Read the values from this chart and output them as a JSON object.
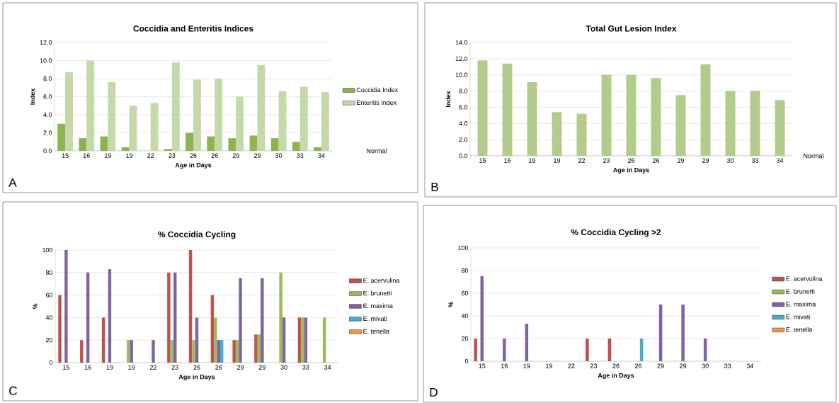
{
  "chart_data": [
    {
      "type": "bar",
      "title": "Coccidia and Enteritis Indices",
      "xlabel": "Age in Days",
      "ylabel": "Index",
      "categories": [
        "15",
        "16",
        "19",
        "19",
        "22",
        "23",
        "26",
        "26",
        "29",
        "29",
        "30",
        "33",
        "34"
      ],
      "series": [
        {
          "name": "Coccidia Index",
          "color": "#8db451",
          "values": [
            3.0,
            1.4,
            1.6,
            0.4,
            null,
            0.2,
            2.0,
            1.6,
            1.4,
            1.7,
            1.4,
            1.0,
            0.4
          ]
        },
        {
          "name": "Enteritis Index",
          "color": "#c5d8a8",
          "values": [
            8.7,
            10.0,
            7.6,
            5.0,
            5.3,
            9.8,
            7.9,
            8.0,
            6.0,
            9.5,
            6.6,
            7.1,
            6.5
          ]
        }
      ],
      "ylim": [
        0,
        12
      ],
      "yticks": [
        {
          "value": 0,
          "label": "0.0"
        },
        {
          "value": 2,
          "label": "2.0"
        },
        {
          "value": 4,
          "label": "4.0"
        },
        {
          "value": 6,
          "label": "6.0"
        },
        {
          "value": 8,
          "label": "8.0"
        },
        {
          "value": 10,
          "label": "10.0"
        },
        {
          "value": 12,
          "label": "12.0"
        }
      ],
      "grid": "y",
      "legend": "right",
      "annotations": [
        "A",
        "Normal"
      ]
    },
    {
      "type": "bar",
      "title": "Total Gut Lesion Index",
      "xlabel": "Age in Days",
      "ylabel": "Index",
      "categories": [
        "15",
        "16",
        "19",
        "19",
        "22",
        "23",
        "26",
        "26",
        "29",
        "29",
        "30",
        "33",
        "34"
      ],
      "series": [
        {
          "color": "#b3cc8c",
          "values": [
            11.8,
            11.4,
            9.1,
            5.4,
            5.2,
            10.0,
            10.0,
            9.6,
            7.5,
            11.3,
            8.0,
            8.0,
            6.9
          ]
        }
      ],
      "ylim": [
        0,
        14
      ],
      "yticks": [
        {
          "value": 0,
          "label": "0.0"
        },
        {
          "value": 2,
          "label": "2.0"
        },
        {
          "value": 4,
          "label": "4.0"
        },
        {
          "value": 6,
          "label": "6.0"
        },
        {
          "value": 8,
          "label": "8.0"
        },
        {
          "value": 10,
          "label": "10.0"
        },
        {
          "value": 12,
          "label": "12.0"
        },
        {
          "value": 14,
          "label": "14.0"
        }
      ],
      "grid": "y",
      "annotations": [
        "B",
        "Normal"
      ]
    },
    {
      "type": "bar",
      "title": "% Coccidia Cycling",
      "xlabel": "Age in Days",
      "ylabel": "%",
      "categories": [
        "15",
        "16",
        "19",
        "19",
        "22",
        "23",
        "26",
        "26",
        "29",
        "29",
        "30",
        "33",
        "34"
      ],
      "series": [
        {
          "name": "E. acervulina",
          "color": "#c0504d",
          "values": [
            60,
            20,
            40,
            null,
            null,
            80,
            100,
            60,
            20,
            25,
            null,
            40,
            null
          ]
        },
        {
          "name": "E. brunetti",
          "color": "#9bbb59",
          "values": [
            null,
            null,
            null,
            20,
            null,
            20,
            20,
            40,
            20,
            25,
            80,
            40,
            40
          ]
        },
        {
          "name": "E. maxima",
          "color": "#8064a2",
          "values": [
            100,
            80,
            83,
            20,
            20,
            80,
            40,
            20,
            75,
            75,
            40,
            40,
            null
          ]
        },
        {
          "name": "E. mivati",
          "color": "#4bacc6",
          "values": [
            null,
            null,
            null,
            null,
            null,
            null,
            null,
            20,
            null,
            null,
            null,
            null,
            null
          ]
        },
        {
          "name": "E. tenella",
          "color": "#f79646",
          "values": [
            null,
            null,
            null,
            null,
            null,
            null,
            null,
            null,
            null,
            null,
            null,
            null,
            null
          ]
        }
      ],
      "ylim": [
        0,
        100
      ],
      "yticks": [
        0,
        20,
        40,
        60,
        80,
        100
      ],
      "grid": "y",
      "legend": "right",
      "annotations": [
        "C"
      ]
    },
    {
      "type": "bar",
      "title": "% Coccidia Cycling >2",
      "xlabel": "Age in Days",
      "ylabel": "%",
      "categories": [
        "15",
        "16",
        "19",
        "19",
        "22",
        "23",
        "26",
        "26",
        "29",
        "29",
        "30",
        "33",
        "34"
      ],
      "series": [
        {
          "name": "E. acervulina",
          "color": "#c0504d",
          "values": [
            20,
            null,
            null,
            null,
            null,
            20,
            20,
            null,
            null,
            null,
            null,
            null,
            null
          ]
        },
        {
          "name": "E. brunetti",
          "color": "#9bbb59",
          "values": [
            null,
            null,
            null,
            null,
            null,
            null,
            null,
            null,
            null,
            null,
            null,
            null,
            null
          ]
        },
        {
          "name": "E. maxima",
          "color": "#8064a2",
          "values": [
            75,
            20,
            33,
            null,
            null,
            null,
            null,
            null,
            50,
            50,
            20,
            null,
            null
          ]
        },
        {
          "name": "E. mivati",
          "color": "#4bacc6",
          "values": [
            null,
            null,
            null,
            null,
            null,
            null,
            null,
            20,
            null,
            null,
            null,
            null,
            null
          ]
        },
        {
          "name": "E. tenella",
          "color": "#f79646",
          "values": [
            null,
            null,
            null,
            null,
            null,
            null,
            null,
            null,
            null,
            null,
            null,
            null,
            null
          ]
        }
      ],
      "ylim": [
        0,
        100
      ],
      "yticks": [
        0,
        20,
        40,
        60,
        80,
        100
      ],
      "grid": "y",
      "legend": "right",
      "annotations": [
        "D"
      ]
    }
  ]
}
